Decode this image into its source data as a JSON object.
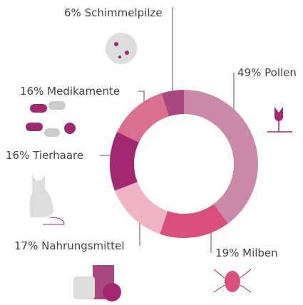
{
  "chart_data": {
    "type": "donut",
    "categories": [
      "Pollen",
      "Milben",
      "Nahrungsmittel",
      "Tierhaare",
      "Medikamente",
      "Schimmelpilze"
    ],
    "values": [
      49,
      19,
      17,
      16,
      16,
      6
    ],
    "value_labels": [
      "49%",
      "19%",
      "17%",
      "16%",
      "16%",
      "6%"
    ],
    "colors": [
      "#c98aa8",
      "#d9507f",
      "#eeb5c4",
      "#a1276f",
      "#d9708f",
      "#a8487f"
    ]
  }
}
